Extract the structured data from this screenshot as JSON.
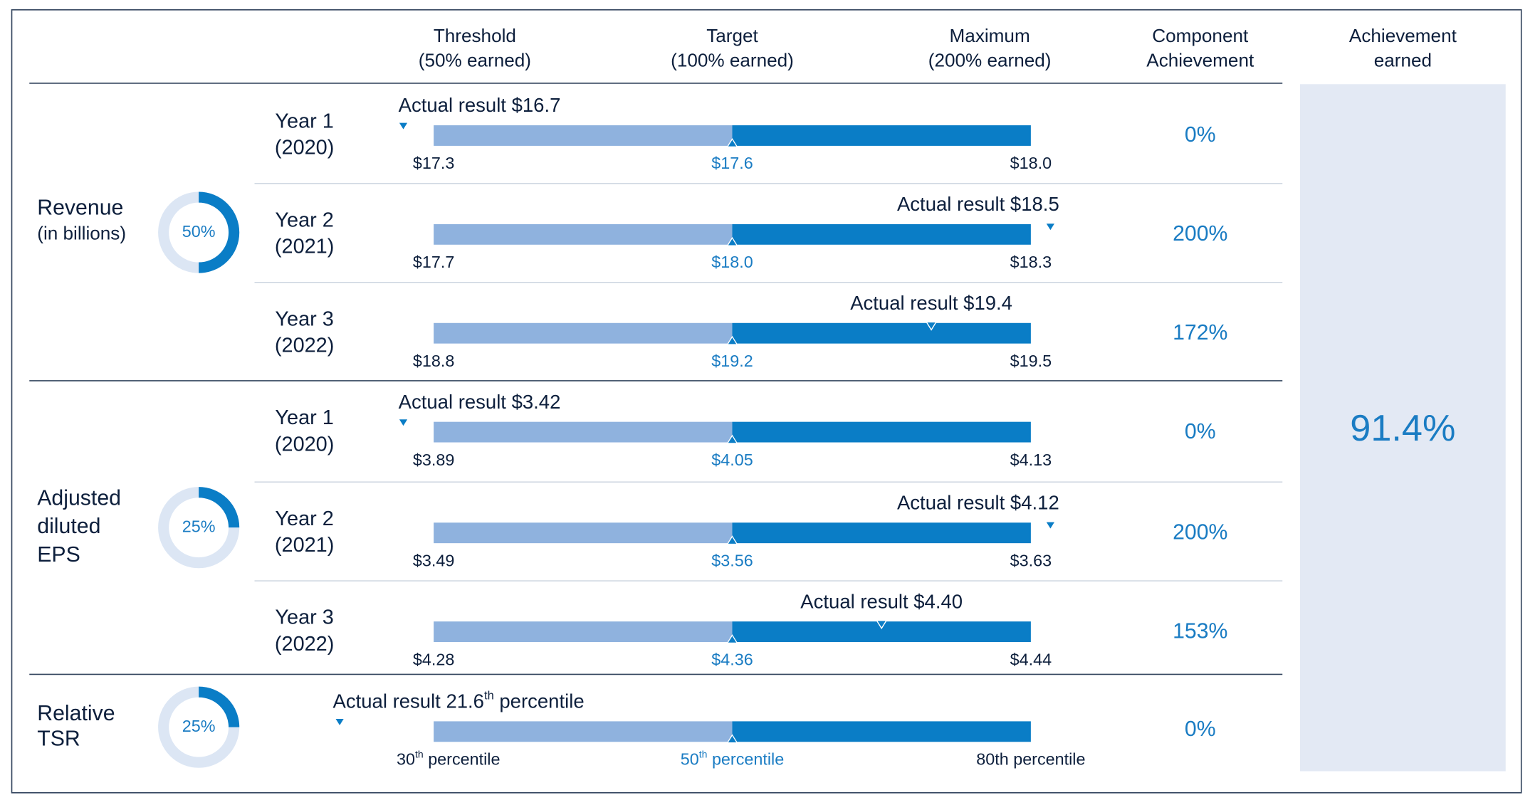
{
  "header": {
    "columns": [
      [
        "Threshold",
        "(50% earned)"
      ],
      [
        "Target",
        "(100% earned)"
      ],
      [
        "Maximum",
        "(200% earned)"
      ],
      [
        "Component",
        "Achievement"
      ],
      [
        "Achievement",
        "earned"
      ]
    ]
  },
  "metrics": [
    {
      "name": [
        "Revenue",
        "(in billions)"
      ],
      "weight": {
        "value": 50,
        "label": "50%"
      },
      "rows": [
        {
          "period": [
            "Year 1",
            "(2020)"
          ],
          "actual": {
            "value": 16.7,
            "label": "Actual result $16.7"
          },
          "threshold": {
            "value": 17.3,
            "label": "$17.3"
          },
          "target": {
            "value": 17.6,
            "label": "$17.6"
          },
          "maximum": {
            "value": 18.0,
            "label": "$18.0"
          },
          "achievement": "0%"
        },
        {
          "period": [
            "Year 2",
            "(2021)"
          ],
          "actual": {
            "value": 18.5,
            "label": "Actual result $18.5"
          },
          "threshold": {
            "value": 17.7,
            "label": "$17.7"
          },
          "target": {
            "value": 18.0,
            "label": "$18.0"
          },
          "maximum": {
            "value": 18.3,
            "label": "$18.3"
          },
          "achievement": "200%"
        },
        {
          "period": [
            "Year 3",
            "(2022)"
          ],
          "actual": {
            "value": 19.4,
            "label": "Actual result $19.4"
          },
          "threshold": {
            "value": 18.8,
            "label": "$18.8"
          },
          "target": {
            "value": 19.2,
            "label": "$19.2"
          },
          "maximum": {
            "value": 19.5,
            "label": "$19.5"
          },
          "achievement": "172%"
        }
      ]
    },
    {
      "name": [
        "Adjusted",
        "diluted",
        "EPS"
      ],
      "weight": {
        "value": 25,
        "label": "25%"
      },
      "rows": [
        {
          "period": [
            "Year 1",
            "(2020)"
          ],
          "actual": {
            "value": 3.42,
            "label": "Actual result $3.42"
          },
          "threshold": {
            "value": 3.89,
            "label": "$3.89"
          },
          "target": {
            "value": 4.05,
            "label": "$4.05"
          },
          "maximum": {
            "value": 4.13,
            "label": "$4.13"
          },
          "achievement": "0%"
        },
        {
          "period": [
            "Year 2",
            "(2021)"
          ],
          "actual": {
            "value": 4.12,
            "label": "Actual result $4.12"
          },
          "threshold": {
            "value": 3.49,
            "label": "$3.49"
          },
          "target": {
            "value": 3.56,
            "label": "$3.56"
          },
          "maximum": {
            "value": 3.63,
            "label": "$3.63"
          },
          "achievement": "200%"
        },
        {
          "period": [
            "Year 3",
            "(2022)"
          ],
          "actual": {
            "value": 4.4,
            "label": "Actual result $4.40"
          },
          "threshold": {
            "value": 4.28,
            "label": "$4.28"
          },
          "target": {
            "value": 4.36,
            "label": "$4.36"
          },
          "maximum": {
            "value": 4.44,
            "label": "$4.44"
          },
          "achievement": "153%"
        }
      ]
    },
    {
      "name": [
        "Relative",
        "TSR"
      ],
      "weight": {
        "value": 25,
        "label": "25%"
      },
      "rows": [
        {
          "actual": {
            "value": 21.6,
            "label": [
              "Actual result 21.6",
              "th",
              " percentile"
            ]
          },
          "threshold": {
            "value": 30,
            "label": [
              "30",
              "th",
              " percentile"
            ]
          },
          "target": {
            "value": 50,
            "label": [
              "50",
              "th",
              " percentile"
            ]
          },
          "maximum": {
            "value": 80,
            "label": "80th percentile"
          },
          "achievement": "0%"
        }
      ]
    }
  ],
  "achievement_earned": "91.4%"
}
